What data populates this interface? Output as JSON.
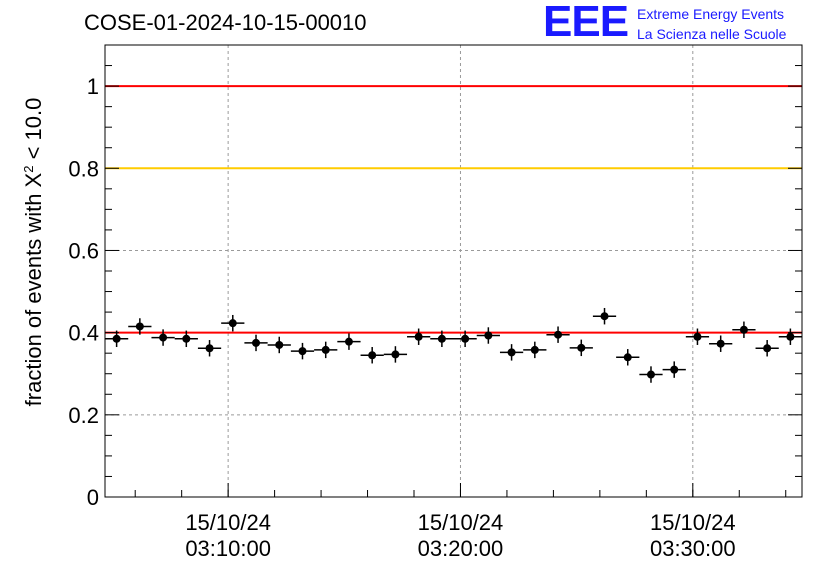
{
  "header": {
    "run_title": "COSE-01-2024-10-15-00010",
    "logo_mark": "EEE",
    "logo_line1": "Extreme Energy Events",
    "logo_line2": "La Scienza nelle Scuole"
  },
  "chart_data": {
    "type": "scatter",
    "title": "COSE-01-2024-10-15-00010",
    "ylabel_main": "fraction of events with X",
    "ylabel_sup": "2",
    "ylabel_tail": " < 10.0",
    "ylim": [
      0,
      1.1
    ],
    "y_ticks": [
      0,
      0.2,
      0.4,
      0.6,
      0.8,
      1
    ],
    "y_tick_labels": [
      "0",
      "0.2",
      "0.4",
      "0.6",
      "0.8",
      "1"
    ],
    "x_range_minutes": [
      0,
      30
    ],
    "x_major_ticks": [
      {
        "minute": 5.3,
        "date": "15/10/24",
        "time": "03:10:00"
      },
      {
        "minute": 15.3,
        "date": "15/10/24",
        "time": "03:20:00"
      },
      {
        "minute": 25.3,
        "date": "15/10/24",
        "time": "03:30:00"
      }
    ],
    "grid": true,
    "reference_lines": [
      {
        "y": 1.0,
        "color": "#ff0000"
      },
      {
        "y": 0.8,
        "color": "#ffcc00"
      },
      {
        "y": 0.4,
        "color": "#ff0000"
      }
    ],
    "points": [
      {
        "x": 0.5,
        "y": 0.385,
        "err": 0.02
      },
      {
        "x": 1.5,
        "y": 0.415,
        "err": 0.02
      },
      {
        "x": 2.5,
        "y": 0.388,
        "err": 0.02
      },
      {
        "x": 3.5,
        "y": 0.385,
        "err": 0.02
      },
      {
        "x": 4.5,
        "y": 0.362,
        "err": 0.02
      },
      {
        "x": 5.5,
        "y": 0.423,
        "err": 0.02
      },
      {
        "x": 6.5,
        "y": 0.375,
        "err": 0.02
      },
      {
        "x": 7.5,
        "y": 0.37,
        "err": 0.02
      },
      {
        "x": 8.5,
        "y": 0.355,
        "err": 0.02
      },
      {
        "x": 9.5,
        "y": 0.358,
        "err": 0.02
      },
      {
        "x": 10.5,
        "y": 0.378,
        "err": 0.02
      },
      {
        "x": 11.5,
        "y": 0.345,
        "err": 0.02
      },
      {
        "x": 12.5,
        "y": 0.347,
        "err": 0.02
      },
      {
        "x": 13.5,
        "y": 0.39,
        "err": 0.02
      },
      {
        "x": 14.5,
        "y": 0.385,
        "err": 0.02
      },
      {
        "x": 15.5,
        "y": 0.385,
        "err": 0.02
      },
      {
        "x": 16.5,
        "y": 0.393,
        "err": 0.02
      },
      {
        "x": 17.5,
        "y": 0.352,
        "err": 0.02
      },
      {
        "x": 18.5,
        "y": 0.358,
        "err": 0.02
      },
      {
        "x": 19.5,
        "y": 0.395,
        "err": 0.02
      },
      {
        "x": 20.5,
        "y": 0.363,
        "err": 0.02
      },
      {
        "x": 21.5,
        "y": 0.44,
        "err": 0.02
      },
      {
        "x": 22.5,
        "y": 0.34,
        "err": 0.02
      },
      {
        "x": 23.5,
        "y": 0.298,
        "err": 0.02
      },
      {
        "x": 24.5,
        "y": 0.31,
        "err": 0.02
      },
      {
        "x": 25.5,
        "y": 0.39,
        "err": 0.02
      },
      {
        "x": 26.5,
        "y": 0.373,
        "err": 0.02
      },
      {
        "x": 27.5,
        "y": 0.407,
        "err": 0.02
      },
      {
        "x": 28.5,
        "y": 0.362,
        "err": 0.02
      },
      {
        "x": 29.5,
        "y": 0.39,
        "err": 0.02
      }
    ],
    "colors": {
      "axis": "#000000",
      "grid": "#9a9a9a",
      "marker": "#000000",
      "logo": "#1a1aff"
    }
  }
}
